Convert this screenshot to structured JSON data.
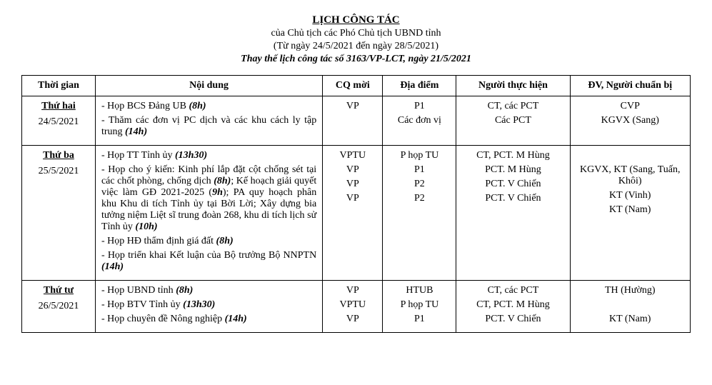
{
  "header": {
    "title_main": "LỊCH  CÔNG TÁC",
    "title_sub": "của Chủ tịch các Phó Chủ tịch UBND tỉnh",
    "title_range": "(Từ ngày 24/5/2021 đến ngày 28/5/2021)",
    "title_replace": "Thay thế lịch công tác số 3163/VP-LCT, ngày 21/5/2021"
  },
  "columns": {
    "time": "Thời gian",
    "noidung": "Nội dung",
    "cqmoi": "CQ mời",
    "diadiem": "Địa điểm",
    "nguoith": "Người thực hiện",
    "dv": "ĐV, Người chuẩn bị"
  },
  "rows": [
    {
      "day_name": "Thứ hai",
      "date": "24/5/2021",
      "items": [
        {
          "content_prefix": "- Họp BCS Đảng UB ",
          "content_time": "(8h)",
          "content_suffix": "",
          "cqmoi": "VP",
          "diadiem": "P1",
          "nguoith": "CT, các PCT",
          "dv": "CVP"
        },
        {
          "content_prefix": "- Thăm các đơn vị PC dịch và các khu cách ly tập trung ",
          "content_time": "(14h)",
          "content_suffix": "",
          "cqmoi": "",
          "diadiem": "Các đơn vị",
          "nguoith": "Các PCT",
          "dv": "KGVX (Sang)"
        }
      ]
    },
    {
      "day_name": "Thứ ba",
      "date": "25/5/2021",
      "items": [
        {
          "content_prefix": "- Họp TT Tỉnh ủy ",
          "content_time": "(13h30)",
          "content_suffix": "",
          "cqmoi": "VPTU",
          "diadiem": "P họp TU",
          "nguoith": "CT, PCT. M Hùng",
          "dv": ""
        },
        {
          "content_html": "- Họp cho ý kiến: Kinh phí lắp đặt cột chống sét tại các chốt phòng, chống dịch <span class=\"bi\">(8h)</span>; Kế hoạch giải quyết việc làm GĐ 2021-2025 (<span class=\"bi\">9h</span>); PA quy hoạch phân khu Khu di tích Tỉnh ủy tại Bời Lời; Xây dựng bia tưởng niệm Liệt sĩ trung đoàn 268, khu di tích lịch sử Tỉnh ủy <span class=\"bi\">(10h)</span>",
          "cqmoi": "VP",
          "diadiem": "P1",
          "nguoith": "PCT. M Hùng",
          "dv": "KGVX, KT (Sang, Tuấn, Khôi)"
        },
        {
          "content_prefix": "- Họp HĐ thẩm định giá đất ",
          "content_time": "(8h)",
          "content_suffix": "",
          "cqmoi": "VP",
          "diadiem": "P2",
          "nguoith": "PCT. V Chiến",
          "dv": "KT (Vinh)"
        },
        {
          "content_prefix": "- Họp triển khai Kết luận của Bộ trưởng Bộ NNPTN ",
          "content_time": "(14h)",
          "content_suffix": "",
          "cqmoi": "VP",
          "diadiem": "P2",
          "nguoith": "PCT. V Chiến",
          "dv": "KT (Nam)"
        }
      ]
    },
    {
      "day_name": "Thứ tư",
      "date": "26/5/2021",
      "items": [
        {
          "content_prefix": "- Họp UBND tỉnh ",
          "content_time": "(8h)",
          "content_suffix": "",
          "cqmoi": "VP",
          "diadiem": "HTUB",
          "nguoith": "CT, các PCT",
          "dv": "TH (Hường)"
        },
        {
          "content_prefix": "- Họp BTV Tỉnh ủy ",
          "content_time": "(13h30)",
          "content_suffix": "",
          "cqmoi": "VPTU",
          "diadiem": "P họp TU",
          "nguoith": "CT, PCT. M Hùng",
          "dv": ""
        },
        {
          "content_prefix": "- Họp chuyên đề Nông nghiệp ",
          "content_time": "(14h)",
          "content_suffix": "",
          "cqmoi": "VP",
          "diadiem": "P1",
          "nguoith": "PCT. V Chiến",
          "dv": "KT (Nam)"
        }
      ]
    }
  ]
}
